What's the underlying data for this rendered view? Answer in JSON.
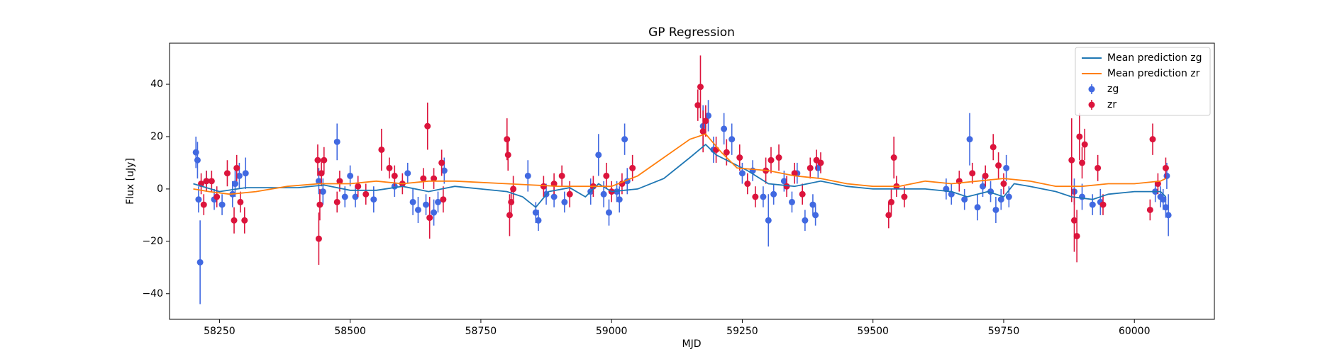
{
  "chart_data": {
    "type": "line",
    "title": "GP Regression",
    "x_label": "MJD",
    "y_label": "Flux [uJy]",
    "xlim": [
      58154.5,
      60153
    ],
    "ylim": [
      -49.8,
      55.7
    ],
    "xticks": [
      58250,
      58500,
      58750,
      59000,
      59250,
      59500,
      59750,
      60000
    ],
    "yticks": [
      {
        "value": -40,
        "label": "−40"
      },
      {
        "value": -20,
        "label": "−20"
      },
      0,
      20,
      40
    ],
    "legend": "upper right",
    "series": [
      {
        "name": "Mean prediction zg",
        "type": "line",
        "color": "#1f77b4",
        "x": [
          58200,
          58250,
          58300,
          58350,
          58400,
          58450,
          58500,
          58550,
          58600,
          58650,
          58700,
          58750,
          58800,
          58830,
          58855,
          58880,
          58920,
          58950,
          58975,
          59000,
          59050,
          59100,
          59150,
          59180,
          59200,
          59230,
          59260,
          59300,
          59350,
          59400,
          59450,
          59500,
          59550,
          59600,
          59650,
          59680,
          59720,
          59750,
          59770,
          59800,
          59850,
          59880,
          59920,
          59950,
          60000,
          60050,
          60060
        ],
        "values": [
          2,
          -1,
          0.5,
          0.5,
          0.5,
          1.5,
          -0.5,
          -0.5,
          1,
          -1,
          1,
          0,
          -1,
          -3,
          -7,
          -1,
          0.5,
          -3,
          2,
          -1,
          0,
          4,
          12,
          17,
          13,
          10,
          7,
          2,
          1,
          3,
          1,
          0,
          0,
          0,
          -1,
          -3,
          -1,
          -3,
          2,
          1,
          -1,
          -3,
          -4,
          -2,
          -1,
          -1,
          -3
        ]
      },
      {
        "name": "Mean prediction zr",
        "type": "line",
        "color": "#ff7f0e",
        "x": [
          58200,
          58230,
          58270,
          58320,
          58380,
          58440,
          58500,
          58550,
          58600,
          58650,
          58700,
          58800,
          58850,
          58900,
          58950,
          59000,
          59050,
          59100,
          59150,
          59180,
          59210,
          59240,
          59300,
          59350,
          59400,
          59450,
          59500,
          59550,
          59600,
          59650,
          59700,
          59750,
          59800,
          59850,
          59900,
          59950,
          60000,
          60050,
          60060
        ],
        "values": [
          0,
          -1,
          -2,
          -1,
          1,
          2,
          2,
          3,
          2,
          3,
          3,
          2,
          1.5,
          1,
          1,
          1,
          5,
          12,
          19,
          21,
          14,
          8,
          7,
          5,
          4,
          2,
          1,
          1,
          3,
          2,
          3,
          4,
          3,
          1,
          1,
          2,
          2,
          3,
          4
        ]
      },
      {
        "name": "zg",
        "type": "errorbar",
        "color": "#4169e1",
        "x": [
          58205,
          58208,
          58210,
          58213,
          58225,
          58240,
          58255,
          58275,
          58280,
          58288,
          58300,
          58440,
          58448,
          58475,
          58490,
          58500,
          58510,
          58545,
          58585,
          58610,
          58620,
          58630,
          58645,
          58660,
          58668,
          58680,
          58840,
          58855,
          58860,
          58875,
          58890,
          58910,
          58960,
          58975,
          58985,
          58995,
          59010,
          59015,
          59025,
          59030,
          59175,
          59185,
          59195,
          59215,
          59230,
          59250,
          59270,
          59290,
          59300,
          59310,
          59330,
          59345,
          59355,
          59370,
          59385,
          59390,
          59395,
          59640,
          59650,
          59675,
          59685,
          59700,
          59710,
          59725,
          59735,
          59745,
          59760,
          59755,
          59885,
          59900,
          59920,
          59935,
          60040,
          60050,
          60055,
          60060,
          60065,
          60062
        ],
        "values": [
          14,
          11,
          -4,
          -28,
          3,
          -4,
          -6,
          -2,
          2,
          5,
          6,
          3,
          -1,
          18,
          -3,
          5,
          -3,
          -4,
          1,
          6,
          -5,
          -8,
          -6,
          -9,
          -5,
          7,
          5,
          -9,
          -12,
          -2,
          -3,
          -5,
          -1,
          13,
          -2,
          -9,
          -1,
          -4,
          19,
          3,
          24,
          28,
          15,
          23,
          19,
          6,
          7,
          -3,
          -12,
          -2,
          3,
          -5,
          6,
          -12,
          -6,
          -10,
          8,
          0,
          -2,
          -4,
          19,
          -7,
          1,
          -1,
          -8,
          -4,
          -3,
          8,
          -1,
          -3,
          -6,
          -5,
          -1,
          -3,
          -4,
          -7,
          -10,
          5
        ],
        "errors": [
          6,
          7,
          5,
          16,
          4,
          4,
          4,
          5,
          5,
          5,
          6,
          5,
          5,
          7,
          4,
          4,
          4,
          5,
          4,
          4,
          5,
          5,
          4,
          5,
          4,
          5,
          6,
          4,
          4,
          4,
          4,
          4,
          5,
          8,
          5,
          5,
          4,
          5,
          6,
          5,
          8,
          6,
          5,
          6,
          6,
          4,
          4,
          4,
          10,
          4,
          4,
          4,
          4,
          4,
          4,
          4,
          4,
          4,
          4,
          4,
          10,
          5,
          4,
          4,
          5,
          4,
          4,
          5,
          5,
          5,
          4,
          5,
          4,
          4,
          4,
          4,
          8,
          5
        ]
      },
      {
        "name": "zr",
        "type": "errorbar",
        "color": "#dc143c",
        "x": [
          58215,
          58220,
          58225,
          58235,
          58245,
          58265,
          58278,
          58283,
          58290,
          58298,
          58438,
          58440,
          58442,
          58445,
          58450,
          58475,
          58480,
          58515,
          58530,
          58560,
          58575,
          58585,
          58600,
          58640,
          58648,
          58652,
          58660,
          58675,
          58678,
          58800,
          58802,
          58805,
          58808,
          58812,
          58870,
          58890,
          58905,
          58920,
          58965,
          58990,
          59000,
          59020,
          59040,
          59165,
          59170,
          59175,
          59180,
          59200,
          59220,
          59245,
          59260,
          59275,
          59295,
          59305,
          59320,
          59335,
          59350,
          59365,
          59380,
          59392,
          59400,
          59530,
          59535,
          59540,
          59545,
          59560,
          59665,
          59690,
          59715,
          59730,
          59740,
          59750,
          59880,
          59885,
          59890,
          59895,
          59900,
          59905,
          59930,
          59940,
          60030,
          60035,
          60045,
          60060
        ],
        "values": [
          2,
          -6,
          3,
          3,
          -3,
          6,
          -12,
          8,
          -5,
          -12,
          11,
          -19,
          -6,
          6,
          11,
          -5,
          3,
          1,
          -2,
          15,
          8,
          5,
          2,
          4,
          24,
          -11,
          4,
          10,
          -4,
          19,
          13,
          -10,
          -5,
          0,
          1,
          2,
          5,
          -2,
          1,
          5,
          -1,
          2,
          8,
          32,
          39,
          22,
          26,
          15,
          14,
          12,
          2,
          -3,
          7,
          11,
          12,
          1,
          6,
          -2,
          8,
          11,
          10,
          -10,
          -5,
          12,
          1,
          -3,
          3,
          6,
          5,
          16,
          9,
          2,
          11,
          -12,
          -18,
          20,
          10,
          17,
          8,
          -6,
          -8,
          19,
          2,
          8
        ],
        "errors": [
          4,
          4,
          4,
          4,
          4,
          5,
          5,
          5,
          4,
          5,
          6,
          10,
          6,
          5,
          5,
          4,
          4,
          4,
          4,
          8,
          4,
          4,
          4,
          4,
          9,
          8,
          4,
          5,
          5,
          8,
          6,
          8,
          5,
          5,
          4,
          4,
          4,
          5,
          4,
          5,
          4,
          4,
          5,
          6,
          12,
          8,
          6,
          5,
          5,
          5,
          4,
          4,
          5,
          5,
          5,
          4,
          4,
          4,
          4,
          4,
          4,
          5,
          5,
          8,
          4,
          4,
          4,
          4,
          4,
          5,
          5,
          4,
          16,
          12,
          10,
          9,
          6,
          6,
          5,
          4,
          4,
          6,
          4,
          4
        ]
      }
    ]
  }
}
